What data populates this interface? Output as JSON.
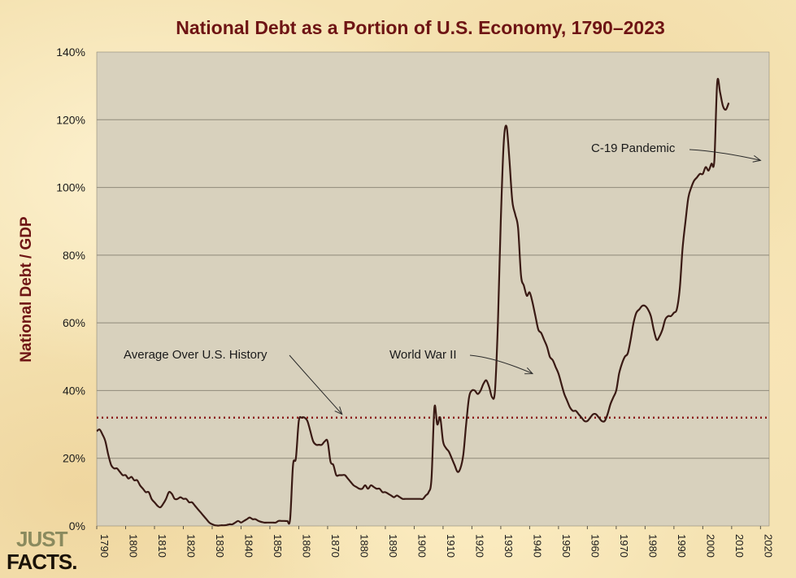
{
  "chart_data": {
    "type": "line",
    "title": "National Debt as a Portion of U.S. Economy, 1790–2023",
    "ylabel": "National Debt / GDP",
    "xlabel": "",
    "xlim": [
      1790,
      2023
    ],
    "ylim": [
      0,
      140
    ],
    "x_ticks": [
      "1790",
      "1800",
      "1810",
      "1820",
      "1830",
      "1840",
      "1850",
      "1860",
      "1870",
      "1880",
      "1890",
      "1900",
      "1910",
      "1920",
      "1930",
      "1940",
      "1950",
      "1960",
      "1970",
      "1980",
      "1990",
      "2000",
      "2010",
      "2020"
    ],
    "y_ticks": [
      "0%",
      "20%",
      "40%",
      "60%",
      "80%",
      "100%",
      "120%",
      "140%"
    ],
    "grid": "horizontal",
    "average_line": {
      "label": "Average Over U.S. History",
      "value": 32
    },
    "annotations": [
      {
        "text": "Average Over U.S. History",
        "target_x": 1875,
        "target_y": 33
      },
      {
        "text": "World War II",
        "target_x": 1941,
        "target_y": 45
      },
      {
        "text": "C-19 Pandemic",
        "target_x": 2020,
        "target_y": 108
      }
    ],
    "series": [
      {
        "name": "",
        "color": "#3a1a14",
        "points": [
          [
            1790,
            28
          ],
          [
            1791,
            28.5
          ],
          [
            1792,
            27
          ],
          [
            1793,
            25
          ],
          [
            1794,
            21
          ],
          [
            1795,
            18
          ],
          [
            1796,
            17
          ],
          [
            1797,
            17
          ],
          [
            1798,
            16
          ],
          [
            1799,
            15
          ],
          [
            1800,
            15
          ],
          [
            1801,
            14
          ],
          [
            1802,
            14.5
          ],
          [
            1803,
            13.5
          ],
          [
            1804,
            13.5
          ],
          [
            1805,
            12
          ],
          [
            1806,
            11
          ],
          [
            1807,
            10
          ],
          [
            1808,
            10
          ],
          [
            1809,
            8
          ],
          [
            1810,
            7
          ],
          [
            1811,
            6
          ],
          [
            1812,
            5.5
          ],
          [
            1813,
            6.5
          ],
          [
            1814,
            8
          ],
          [
            1815,
            10
          ],
          [
            1816,
            9.5
          ],
          [
            1817,
            8
          ],
          [
            1818,
            8
          ],
          [
            1819,
            8.5
          ],
          [
            1820,
            8
          ],
          [
            1821,
            8
          ],
          [
            1822,
            7
          ],
          [
            1823,
            7
          ],
          [
            1824,
            6
          ],
          [
            1825,
            5
          ],
          [
            1826,
            4
          ],
          [
            1827,
            3
          ],
          [
            1828,
            2
          ],
          [
            1829,
            1
          ],
          [
            1830,
            0.5
          ],
          [
            1831,
            0.2
          ],
          [
            1832,
            0.1
          ],
          [
            1833,
            0.2
          ],
          [
            1834,
            0.2
          ],
          [
            1835,
            0.3
          ],
          [
            1836,
            0.5
          ],
          [
            1837,
            0.5
          ],
          [
            1838,
            1
          ],
          [
            1839,
            1.5
          ],
          [
            1840,
            1
          ],
          [
            1841,
            1.5
          ],
          [
            1842,
            2
          ],
          [
            1843,
            2.5
          ],
          [
            1844,
            2
          ],
          [
            1845,
            2
          ],
          [
            1846,
            1.5
          ],
          [
            1847,
            1.2
          ],
          [
            1848,
            1
          ],
          [
            1849,
            1
          ],
          [
            1850,
            1
          ],
          [
            1851,
            1
          ],
          [
            1852,
            1
          ],
          [
            1853,
            1.5
          ],
          [
            1854,
            1.5
          ],
          [
            1855,
            1.5
          ],
          [
            1856,
            1.5
          ],
          [
            1857,
            2
          ],
          [
            1858,
            18
          ],
          [
            1859,
            20
          ],
          [
            1860,
            31
          ],
          [
            1861,
            32
          ],
          [
            1862,
            32
          ],
          [
            1863,
            31
          ],
          [
            1864,
            28
          ],
          [
            1865,
            25
          ],
          [
            1866,
            24
          ],
          [
            1867,
            24
          ],
          [
            1868,
            24
          ],
          [
            1869,
            25
          ],
          [
            1870,
            25
          ],
          [
            1871,
            19
          ],
          [
            1872,
            18
          ],
          [
            1873,
            15
          ],
          [
            1874,
            15
          ],
          [
            1875,
            15
          ],
          [
            1876,
            15
          ],
          [
            1877,
            14
          ],
          [
            1878,
            13
          ],
          [
            1879,
            12
          ],
          [
            1880,
            11.5
          ],
          [
            1881,
            11
          ],
          [
            1882,
            11
          ],
          [
            1883,
            12
          ],
          [
            1884,
            11
          ],
          [
            1885,
            12
          ],
          [
            1886,
            11.5
          ],
          [
            1887,
            11
          ],
          [
            1888,
            11
          ],
          [
            1889,
            10
          ],
          [
            1890,
            10
          ],
          [
            1891,
            9.5
          ],
          [
            1892,
            9
          ],
          [
            1893,
            8.5
          ],
          [
            1894,
            9
          ],
          [
            1895,
            8.5
          ],
          [
            1896,
            8
          ],
          [
            1897,
            8
          ],
          [
            1898,
            8
          ],
          [
            1899,
            8
          ],
          [
            1900,
            8
          ],
          [
            1901,
            8
          ],
          [
            1902,
            8
          ],
          [
            1903,
            8
          ],
          [
            1904,
            9
          ],
          [
            1905,
            10
          ],
          [
            1906,
            14
          ],
          [
            1907,
            35
          ],
          [
            1908,
            30
          ],
          [
            1909,
            32
          ],
          [
            1910,
            25
          ],
          [
            1911,
            23
          ],
          [
            1912,
            22
          ],
          [
            1913,
            20
          ],
          [
            1914,
            18
          ],
          [
            1915,
            16
          ],
          [
            1916,
            17
          ],
          [
            1917,
            21
          ],
          [
            1918,
            30
          ],
          [
            1919,
            38
          ],
          [
            1920,
            40
          ],
          [
            1921,
            40
          ],
          [
            1922,
            39
          ],
          [
            1923,
            40
          ],
          [
            1924,
            42
          ],
          [
            1925,
            43
          ],
          [
            1926,
            41
          ],
          [
            1927,
            38
          ],
          [
            1928,
            40
          ],
          [
            1929,
            60
          ],
          [
            1930,
            90
          ],
          [
            1931,
            113
          ],
          [
            1932,
            118
          ],
          [
            1933,
            108
          ],
          [
            1934,
            96
          ],
          [
            1935,
            92
          ],
          [
            1936,
            88
          ],
          [
            1937,
            74
          ],
          [
            1938,
            71
          ],
          [
            1939,
            68
          ],
          [
            1940,
            69
          ],
          [
            1941,
            66
          ],
          [
            1942,
            62
          ],
          [
            1943,
            58
          ],
          [
            1944,
            57
          ],
          [
            1945,
            55
          ],
          [
            1946,
            53
          ],
          [
            1947,
            50
          ],
          [
            1948,
            49
          ],
          [
            1949,
            47
          ],
          [
            1950,
            45
          ],
          [
            1951,
            42
          ],
          [
            1952,
            39
          ],
          [
            1953,
            37
          ],
          [
            1954,
            35
          ],
          [
            1955,
            34
          ],
          [
            1956,
            34
          ],
          [
            1957,
            33
          ],
          [
            1958,
            32
          ],
          [
            1959,
            31
          ],
          [
            1960,
            31
          ],
          [
            1961,
            32
          ],
          [
            1962,
            33
          ],
          [
            1963,
            33
          ],
          [
            1964,
            32
          ],
          [
            1965,
            31
          ],
          [
            1966,
            31
          ],
          [
            1967,
            33
          ],
          [
            1968,
            36
          ],
          [
            1969,
            38
          ],
          [
            1970,
            40
          ],
          [
            1971,
            45
          ],
          [
            1972,
            48
          ],
          [
            1973,
            50
          ],
          [
            1974,
            51
          ],
          [
            1975,
            55
          ],
          [
            1976,
            60
          ],
          [
            1977,
            63
          ],
          [
            1978,
            64
          ],
          [
            1979,
            65
          ],
          [
            1980,
            65
          ],
          [
            1981,
            64
          ],
          [
            1982,
            62
          ],
          [
            1983,
            58
          ],
          [
            1984,
            55
          ],
          [
            1985,
            56
          ],
          [
            1986,
            58
          ],
          [
            1987,
            61
          ],
          [
            1988,
            62
          ],
          [
            1989,
            62
          ],
          [
            1990,
            63
          ],
          [
            1991,
            64
          ],
          [
            1992,
            70
          ],
          [
            1993,
            82
          ],
          [
            1994,
            90
          ],
          [
            1995,
            97
          ],
          [
            1996,
            100
          ],
          [
            1997,
            102
          ],
          [
            1998,
            103
          ],
          [
            1999,
            104
          ],
          [
            2000,
            104
          ],
          [
            2001,
            106
          ],
          [
            2002,
            105
          ],
          [
            2003,
            107
          ],
          [
            2004,
            108
          ],
          [
            2005,
            131
          ],
          [
            2006,
            128
          ],
          [
            2007,
            124
          ],
          [
            2008,
            123
          ],
          [
            2009,
            125
          ]
        ]
      }
    ]
  },
  "logo": {
    "line1": "JUST",
    "line2": "FACTS."
  },
  "colors": {
    "line": "#3a1a14",
    "average": "#8b1a1a",
    "title": "#6e1414",
    "plot_bg": "#d8d1bd",
    "grid": "#8f8a7a"
  }
}
